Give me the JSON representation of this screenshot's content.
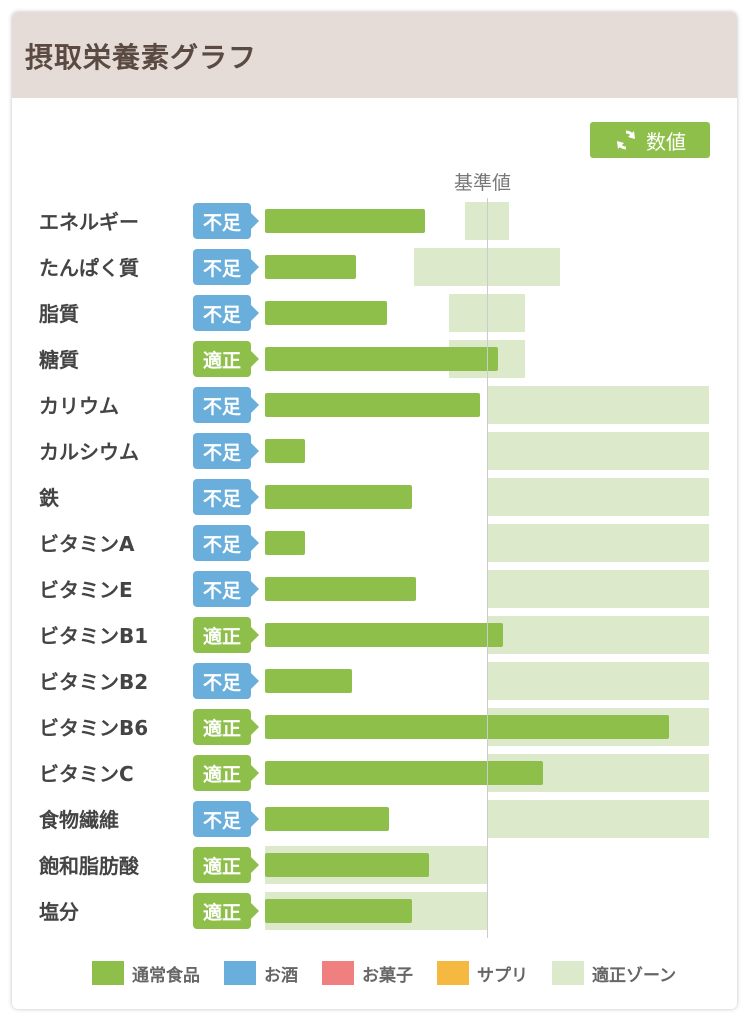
{
  "header": {
    "title": "摂取栄養素グラフ"
  },
  "toolbar": {
    "value_button_label": "数値"
  },
  "chart": {
    "reference_label": "基準値"
  },
  "chart_data": {
    "type": "bar",
    "orientation": "horizontal",
    "unit": "fraction_of_reference",
    "reference_value": 1.0,
    "axis_max": 2.0,
    "categories": [
      "エネルギー",
      "たんぱく質",
      "脂質",
      "糖質",
      "カリウム",
      "カルシウム",
      "鉄",
      "ビタミンA",
      "ビタミンE",
      "ビタミンB1",
      "ビタミンB2",
      "ビタミンB6",
      "ビタミンC",
      "食物繊維",
      "飽和脂肪酸",
      "塩分"
    ],
    "statuses": [
      "不足",
      "不足",
      "不足",
      "適正",
      "不足",
      "不足",
      "不足",
      "不足",
      "不足",
      "適正",
      "不足",
      "適正",
      "適正",
      "不足",
      "適正",
      "適正"
    ],
    "values": [
      0.72,
      0.41,
      0.55,
      1.05,
      0.97,
      0.18,
      0.66,
      0.18,
      0.68,
      1.07,
      0.39,
      1.82,
      1.25,
      0.56,
      0.74,
      0.66
    ],
    "zones": [
      [
        0.9,
        1.1
      ],
      [
        0.67,
        1.33
      ],
      [
        0.83,
        1.17
      ],
      [
        0.83,
        1.17
      ],
      [
        1.0,
        2.0
      ],
      [
        1.0,
        2.0
      ],
      [
        1.0,
        2.0
      ],
      [
        1.0,
        2.0
      ],
      [
        1.0,
        2.0
      ],
      [
        1.0,
        2.0
      ],
      [
        1.0,
        2.0
      ],
      [
        1.0,
        2.0
      ],
      [
        1.0,
        2.0
      ],
      [
        1.0,
        2.0
      ],
      [
        0,
        1.0
      ],
      [
        0,
        1.0
      ]
    ]
  },
  "legend": [
    {
      "label": "通常食品",
      "color": "#8fbf4b"
    },
    {
      "label": "お酒",
      "color": "#6aaedc"
    },
    {
      "label": "お菓子",
      "color": "#f08080"
    },
    {
      "label": "サプリ",
      "color": "#f5b942"
    },
    {
      "label": "適正ゾーン",
      "color": "#dde9cb"
    }
  ],
  "colors": {
    "accent": "#8fbf4b",
    "status_short": "#6aaedc",
    "status_ok": "#8fbf4b",
    "zone": "#dde9cb",
    "header_bg": "#e5dcd7"
  },
  "icons": {
    "value_button_icon": "refresh-icon"
  }
}
